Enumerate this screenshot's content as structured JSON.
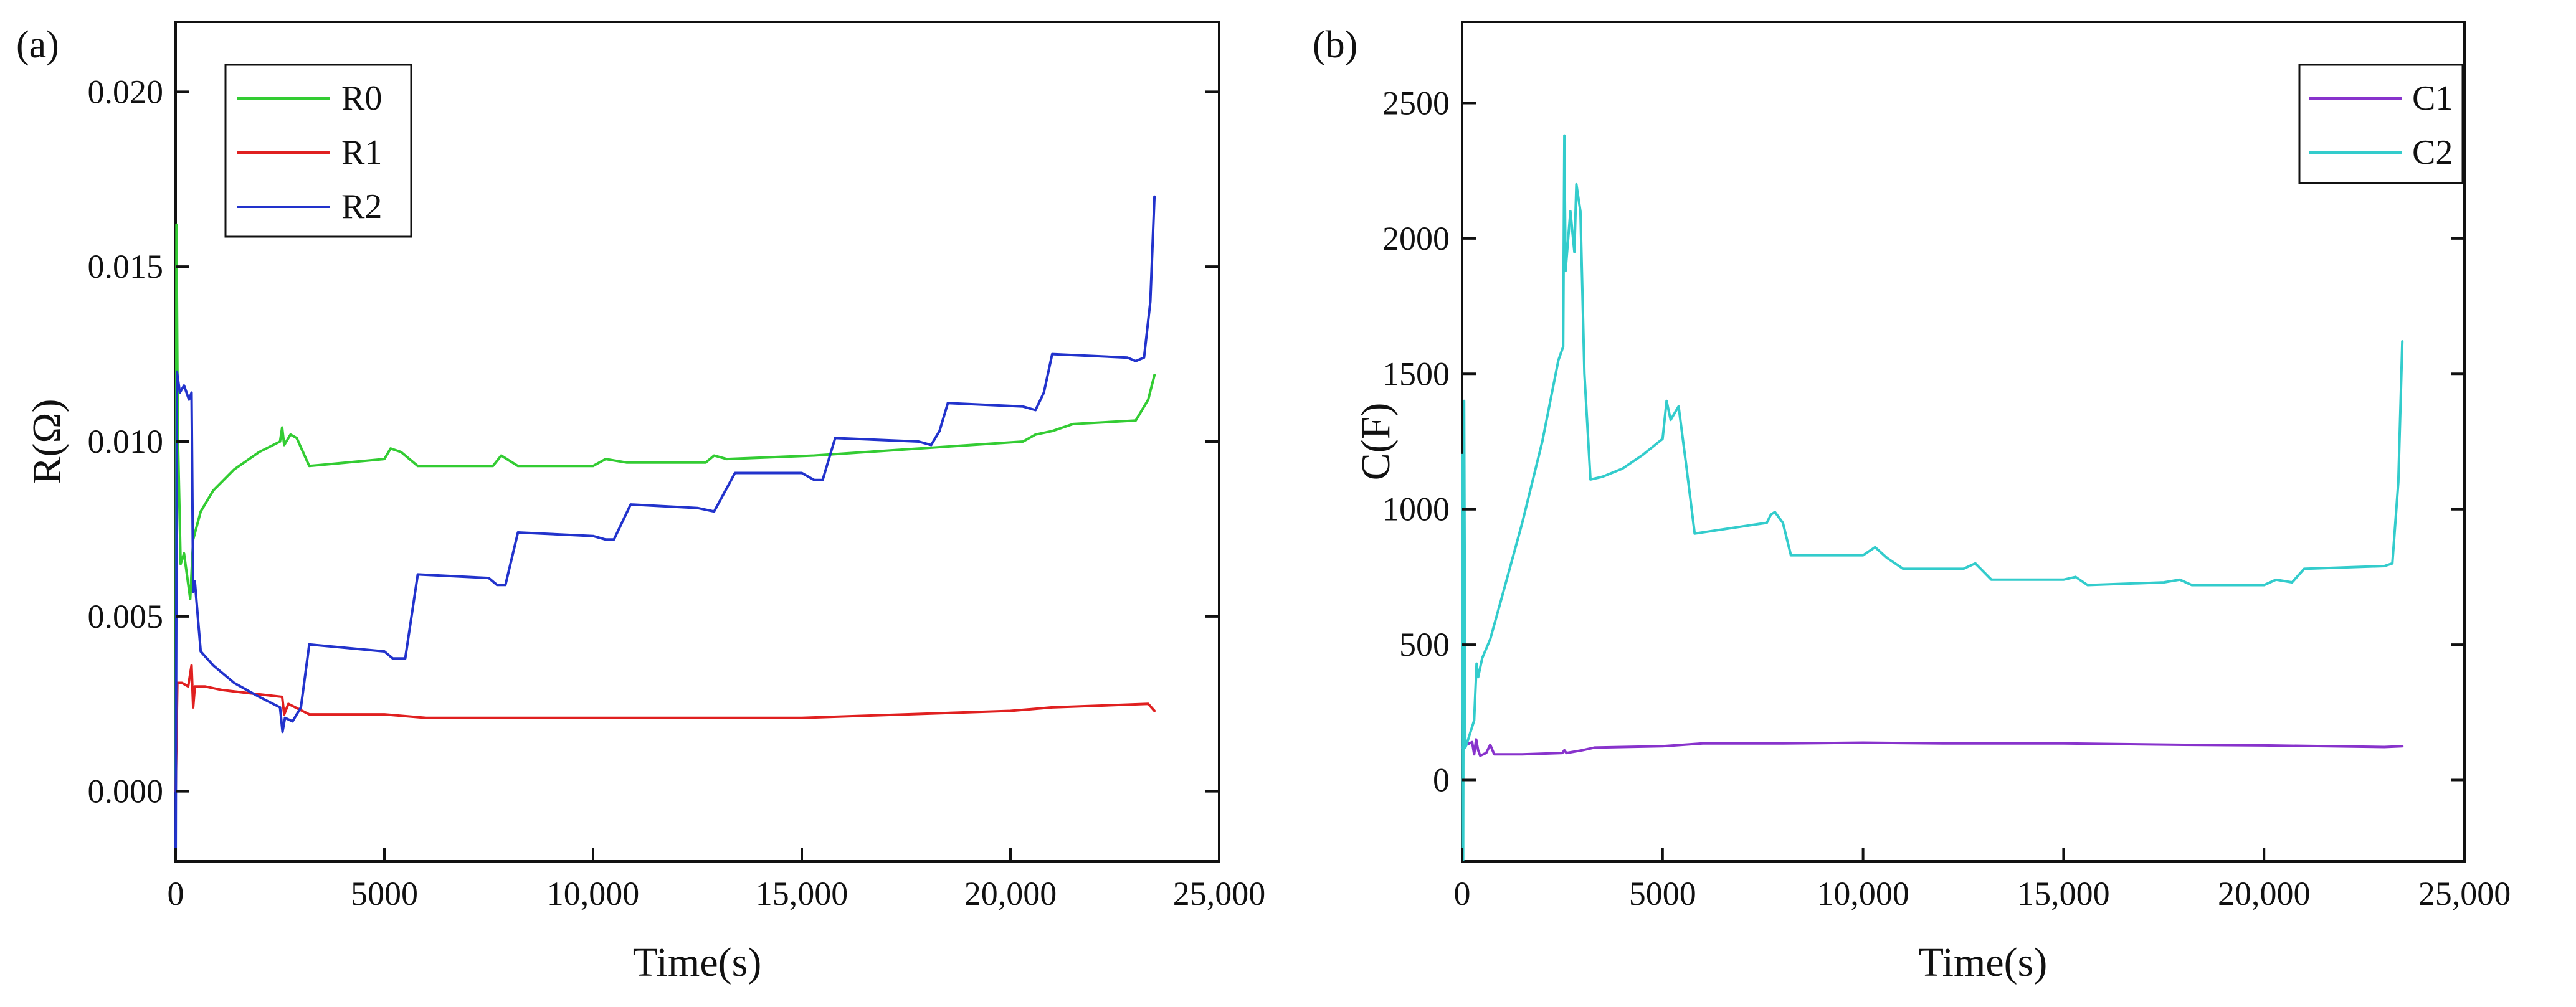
{
  "chart_data": [
    {
      "type": "line",
      "panel_label": "(a)",
      "title": "",
      "xlabel": "Time(s)",
      "ylabel": "R(Ω)",
      "xlim": [
        0,
        25000
      ],
      "ylim": [
        -0.002,
        0.022
      ],
      "xticks": [
        0,
        5000,
        10000,
        15000,
        20000,
        25000
      ],
      "xtick_labels": [
        "0",
        "5000",
        "10,000",
        "15,000",
        "20,000",
        "25,000"
      ],
      "yticks": [
        0.0,
        0.005,
        0.01,
        0.015,
        0.02
      ],
      "ytick_labels": [
        "0.000",
        "0.005",
        "0.010",
        "0.015",
        "0.020"
      ],
      "grid": false,
      "legend_position": "top-left",
      "series": [
        {
          "name": "R0",
          "color": "#33cc33",
          "points": [
            [
              0,
              0.0
            ],
            [
              20,
              0.0162
            ],
            [
              50,
              0.0103
            ],
            [
              120,
              0.0065
            ],
            [
              200,
              0.0068
            ],
            [
              350,
              0.0055
            ],
            [
              420,
              0.0072
            ],
            [
              600,
              0.008
            ],
            [
              900,
              0.0086
            ],
            [
              1400,
              0.0092
            ],
            [
              2000,
              0.0097
            ],
            [
              2500,
              0.01
            ],
            [
              2550,
              0.0104
            ],
            [
              2600,
              0.0099
            ],
            [
              2750,
              0.0102
            ],
            [
              2900,
              0.0101
            ],
            [
              3200,
              0.0093
            ],
            [
              5000,
              0.0095
            ],
            [
              5150,
              0.0098
            ],
            [
              5400,
              0.0097
            ],
            [
              5800,
              0.0093
            ],
            [
              7600,
              0.0093
            ],
            [
              7800,
              0.0096
            ],
            [
              8200,
              0.0093
            ],
            [
              10000,
              0.0093
            ],
            [
              10300,
              0.0095
            ],
            [
              10800,
              0.0094
            ],
            [
              12700,
              0.0094
            ],
            [
              12900,
              0.0096
            ],
            [
              13200,
              0.0095
            ],
            [
              15300,
              0.0096
            ],
            [
              17800,
              0.0098
            ],
            [
              20300,
              0.01
            ],
            [
              20600,
              0.0102
            ],
            [
              21000,
              0.0103
            ],
            [
              21500,
              0.0105
            ],
            [
              23000,
              0.0106
            ],
            [
              23300,
              0.0112
            ],
            [
              23450,
              0.0119
            ]
          ]
        },
        {
          "name": "R1",
          "color": "#e02020",
          "points": [
            [
              0,
              0.0
            ],
            [
              40,
              0.0031
            ],
            [
              150,
              0.0031
            ],
            [
              300,
              0.003
            ],
            [
              380,
              0.0036
            ],
            [
              420,
              0.0024
            ],
            [
              460,
              0.003
            ],
            [
              700,
              0.003
            ],
            [
              1100,
              0.0029
            ],
            [
              1800,
              0.0028
            ],
            [
              2550,
              0.0027
            ],
            [
              2600,
              0.0022
            ],
            [
              2700,
              0.0025
            ],
            [
              3200,
              0.0022
            ],
            [
              5000,
              0.0022
            ],
            [
              6000,
              0.0021
            ],
            [
              8000,
              0.0021
            ],
            [
              10000,
              0.0021
            ],
            [
              12500,
              0.0021
            ],
            [
              15000,
              0.0021
            ],
            [
              17500,
              0.0022
            ],
            [
              20000,
              0.0023
            ],
            [
              21000,
              0.0024
            ],
            [
              23300,
              0.0025
            ],
            [
              23450,
              0.0023
            ]
          ]
        },
        {
          "name": "R2",
          "color": "#2233cc",
          "points": [
            [
              0,
              -0.002
            ],
            [
              30,
              0.012
            ],
            [
              100,
              0.0114
            ],
            [
              200,
              0.0116
            ],
            [
              320,
              0.0112
            ],
            [
              380,
              0.0114
            ],
            [
              420,
              0.0057
            ],
            [
              460,
              0.006
            ],
            [
              600,
              0.004
            ],
            [
              900,
              0.0036
            ],
            [
              1400,
              0.0031
            ],
            [
              2000,
              0.0027
            ],
            [
              2500,
              0.0024
            ],
            [
              2560,
              0.0017
            ],
            [
              2620,
              0.0021
            ],
            [
              2800,
              0.002
            ],
            [
              3000,
              0.0024
            ],
            [
              3200,
              0.0042
            ],
            [
              5000,
              0.004
            ],
            [
              5200,
              0.0038
            ],
            [
              5500,
              0.0038
            ],
            [
              5800,
              0.0062
            ],
            [
              7500,
              0.0061
            ],
            [
              7700,
              0.0059
            ],
            [
              7900,
              0.0059
            ],
            [
              8200,
              0.0074
            ],
            [
              10000,
              0.0073
            ],
            [
              10300,
              0.0072
            ],
            [
              10500,
              0.0072
            ],
            [
              10900,
              0.0082
            ],
            [
              12500,
              0.0081
            ],
            [
              12900,
              0.008
            ],
            [
              13400,
              0.0091
            ],
            [
              15000,
              0.0091
            ],
            [
              15300,
              0.0089
            ],
            [
              15500,
              0.0089
            ],
            [
              15800,
              0.0101
            ],
            [
              17800,
              0.01
            ],
            [
              18100,
              0.0099
            ],
            [
              18300,
              0.0103
            ],
            [
              18500,
              0.0111
            ],
            [
              20300,
              0.011
            ],
            [
              20600,
              0.0109
            ],
            [
              20800,
              0.0114
            ],
            [
              21000,
              0.0125
            ],
            [
              22800,
              0.0124
            ],
            [
              23000,
              0.0123
            ],
            [
              23200,
              0.0124
            ],
            [
              23350,
              0.014
            ],
            [
              23450,
              0.017
            ]
          ]
        }
      ]
    },
    {
      "type": "line",
      "panel_label": "(b)",
      "title": "",
      "xlabel": "Time(s)",
      "ylabel": "C(F)",
      "xlim": [
        0,
        25000
      ],
      "ylim": [
        -300,
        2800
      ],
      "xticks": [
        0,
        5000,
        10000,
        15000,
        20000,
        25000
      ],
      "xtick_labels": [
        "0",
        "5000",
        "10,000",
        "15,000",
        "20,000",
        "25,000"
      ],
      "yticks": [
        0,
        500,
        1000,
        1500,
        2000,
        2500
      ],
      "ytick_labels": [
        "0",
        "500",
        "1000",
        "1500",
        "2000",
        "2500"
      ],
      "grid": false,
      "legend_position": "top-right",
      "series": [
        {
          "name": "C1",
          "color": "#8833cc",
          "points": [
            [
              0,
              120
            ],
            [
              100,
              130
            ],
            [
              250,
              140
            ],
            [
              300,
              95
            ],
            [
              350,
              150
            ],
            [
              400,
              110
            ],
            [
              450,
              90
            ],
            [
              600,
              100
            ],
            [
              700,
              130
            ],
            [
              800,
              95
            ],
            [
              1500,
              95
            ],
            [
              2500,
              100
            ],
            [
              2550,
              110
            ],
            [
              2600,
              100
            ],
            [
              3000,
              110
            ],
            [
              3300,
              120
            ],
            [
              5000,
              125
            ],
            [
              6000,
              135
            ],
            [
              8000,
              135
            ],
            [
              10000,
              138
            ],
            [
              12000,
              135
            ],
            [
              15000,
              135
            ],
            [
              18000,
              130
            ],
            [
              20000,
              128
            ],
            [
              23000,
              122
            ],
            [
              23450,
              125
            ]
          ]
        },
        {
          "name": "C2",
          "color": "#33cccc",
          "points": [
            [
              0,
              1200
            ],
            [
              25,
              -300
            ],
            [
              50,
              1400
            ],
            [
              80,
              120
            ],
            [
              150,
              150
            ],
            [
              300,
              220
            ],
            [
              360,
              430
            ],
            [
              400,
              380
            ],
            [
              500,
              450
            ],
            [
              700,
              520
            ],
            [
              1000,
              680
            ],
            [
              1500,
              950
            ],
            [
              2000,
              1250
            ],
            [
              2400,
              1550
            ],
            [
              2520,
              1600
            ],
            [
              2550,
              2380
            ],
            [
              2580,
              1880
            ],
            [
              2700,
              2100
            ],
            [
              2800,
              1950
            ],
            [
              2850,
              2200
            ],
            [
              2950,
              2100
            ],
            [
              3050,
              1500
            ],
            [
              3200,
              1110
            ],
            [
              3500,
              1120
            ],
            [
              4000,
              1150
            ],
            [
              4500,
              1200
            ],
            [
              5000,
              1260
            ],
            [
              5100,
              1400
            ],
            [
              5200,
              1330
            ],
            [
              5400,
              1380
            ],
            [
              5600,
              1150
            ],
            [
              5800,
              910
            ],
            [
              7600,
              950
            ],
            [
              7700,
              980
            ],
            [
              7800,
              990
            ],
            [
              8000,
              950
            ],
            [
              8200,
              830
            ],
            [
              10000,
              830
            ],
            [
              10300,
              860
            ],
            [
              10600,
              820
            ],
            [
              11000,
              780
            ],
            [
              12500,
              780
            ],
            [
              12800,
              800
            ],
            [
              13200,
              740
            ],
            [
              15000,
              740
            ],
            [
              15300,
              750
            ],
            [
              15600,
              720
            ],
            [
              17500,
              730
            ],
            [
              17900,
              740
            ],
            [
              18200,
              720
            ],
            [
              20000,
              720
            ],
            [
              20300,
              740
            ],
            [
              20700,
              730
            ],
            [
              21000,
              780
            ],
            [
              23000,
              790
            ],
            [
              23200,
              800
            ],
            [
              23350,
              1100
            ],
            [
              23450,
              1620
            ]
          ]
        }
      ]
    }
  ]
}
